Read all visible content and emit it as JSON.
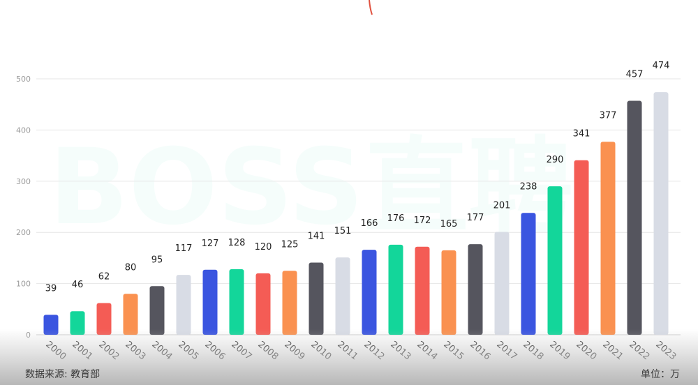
{
  "chart_data": {
    "type": "bar",
    "categories": [
      "2000",
      "2001",
      "2002",
      "2003",
      "2004",
      "2005",
      "2006",
      "2007",
      "2008",
      "2009",
      "2010",
      "2011",
      "2012",
      "2013",
      "2014",
      "2015",
      "2016",
      "2017",
      "2018",
      "2019",
      "2020",
      "2021",
      "2022",
      "2023"
    ],
    "values": [
      39,
      46,
      62,
      80,
      95,
      117,
      127,
      128,
      120,
      125,
      141,
      151,
      166,
      176,
      172,
      165,
      177,
      201,
      238,
      290,
      341,
      377,
      457,
      474
    ],
    "ylim": [
      0,
      500
    ],
    "yticks": [
      0,
      100,
      200,
      300,
      400,
      500
    ],
    "grid": true,
    "colors": [
      "#3a55e0",
      "#13d69a",
      "#f45c55",
      "#fa9150",
      "#55555e",
      "#d8dce5"
    ],
    "title": "",
    "xlabel": "",
    "ylabel": ""
  },
  "footer": {
    "source": "数据来源: 教育部",
    "unit": "单位：万"
  },
  "watermark": "BOSS直聘"
}
